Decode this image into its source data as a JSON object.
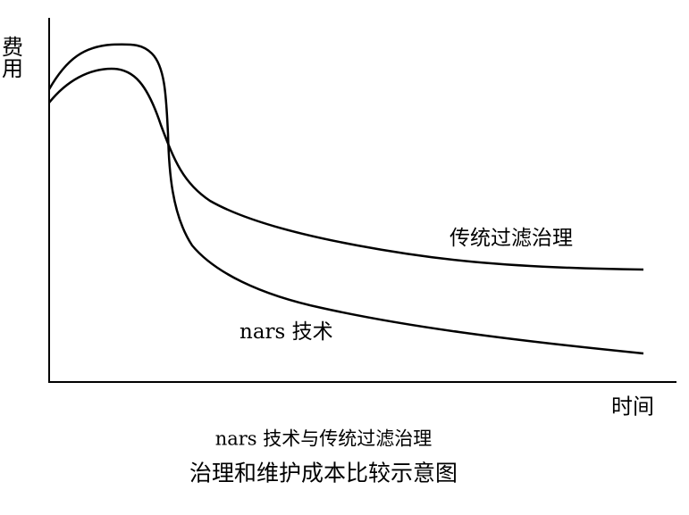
{
  "diagram": {
    "y_axis_label": "费用",
    "x_axis_label": "时间",
    "curves": [
      {
        "label": "传统过滤治理"
      },
      {
        "label": "nars 技术"
      }
    ]
  },
  "caption": {
    "line1": "nars 技术与传统过滤治理",
    "line2": "治理和维护成本比较示意图"
  }
}
